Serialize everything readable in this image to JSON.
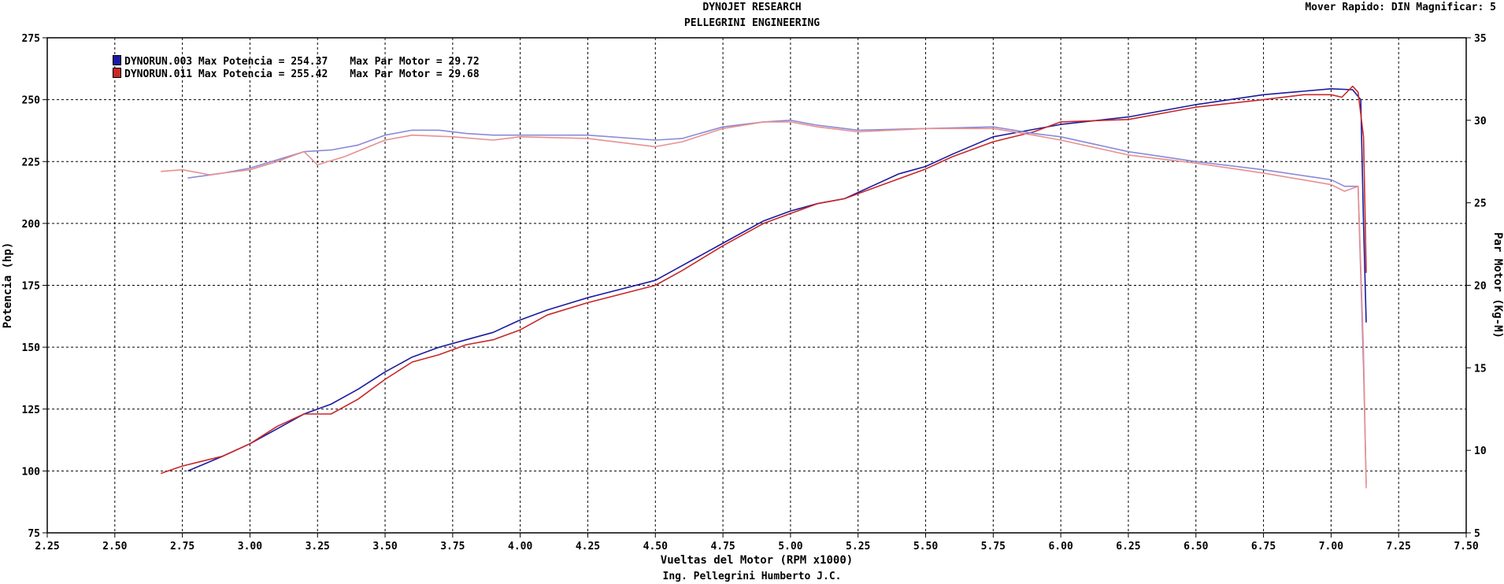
{
  "header": {
    "title": "DYNOJET RESEARCH",
    "subtitle": "PELLEGRINI ENGINEERING",
    "info": "Mover Rapido: DIN  Magnificar: 5"
  },
  "footer": {
    "credit": "Ing. Pellegrini Humberto J.C."
  },
  "legend": [
    {
      "name": "DYNORUN.003",
      "power_text": "Max Potencia = 254.37",
      "torque_text": "Max Par Motor = 29.72"
    },
    {
      "name": "DYNORUN.011",
      "power_text": "Max Potencia = 255.42",
      "torque_text": "Max Par Motor = 29.68"
    }
  ],
  "chart_data": {
    "type": "line",
    "xlabel": "Vueltas del Motor (RPM x1000)",
    "ylabel_left": "Potencia (hp)",
    "ylabel_right": "Par Motor (Kg-M)",
    "xlim": [
      2.25,
      7.5
    ],
    "ylim_left": [
      75,
      275
    ],
    "ylim_right": [
      5,
      35
    ],
    "xticks": [
      "2.25",
      "2.50",
      "2.75",
      "3.00",
      "3.25",
      "3.50",
      "3.75",
      "4.00",
      "4.25",
      "4.50",
      "4.75",
      "5.00",
      "5.25",
      "5.50",
      "5.75",
      "6.00",
      "6.25",
      "6.50",
      "6.75",
      "7.00",
      "7.25",
      "7.50"
    ],
    "yticks_left": [
      "75",
      "100",
      "125",
      "150",
      "175",
      "200",
      "225",
      "250",
      "275"
    ],
    "yticks_right": [
      "5",
      "10",
      "15",
      "20",
      "25",
      "30",
      "35"
    ],
    "grid": true,
    "colors": {
      "run003": "#1a1aa0",
      "run011": "#c82828",
      "run003_torque": "#8a8ad8",
      "run011_torque": "#e89090"
    },
    "series": [
      {
        "name": "DYNORUN.003",
        "kind": "power",
        "axis": "left",
        "x": [
          2.77,
          2.9,
          3.0,
          3.1,
          3.2,
          3.3,
          3.4,
          3.5,
          3.6,
          3.7,
          3.8,
          3.9,
          4.0,
          4.1,
          4.25,
          4.5,
          4.6,
          4.75,
          4.9,
          5.0,
          5.1,
          5.2,
          5.3,
          5.4,
          5.5,
          5.6,
          5.75,
          5.9,
          6.0,
          6.25,
          6.5,
          6.75,
          7.0,
          7.08,
          7.11,
          7.12,
          7.13
        ],
        "y": [
          100,
          106,
          111,
          117,
          123,
          127,
          133,
          140,
          146,
          150,
          153,
          156,
          161,
          165,
          170,
          177,
          183,
          192,
          201,
          205,
          208,
          210,
          215,
          220,
          223,
          228,
          235,
          238,
          240,
          243,
          248,
          252,
          254.4,
          254,
          250,
          200,
          160
        ]
      },
      {
        "name": "DYNORUN.011",
        "kind": "power",
        "axis": "left",
        "x": [
          2.67,
          2.75,
          2.9,
          3.0,
          3.1,
          3.2,
          3.3,
          3.4,
          3.5,
          3.6,
          3.7,
          3.8,
          3.9,
          4.0,
          4.1,
          4.25,
          4.5,
          4.6,
          4.75,
          4.9,
          5.0,
          5.1,
          5.2,
          5.3,
          5.4,
          5.5,
          5.6,
          5.75,
          5.9,
          6.0,
          6.25,
          6.5,
          6.75,
          6.9,
          7.0,
          7.04,
          7.08,
          7.1,
          7.12,
          7.13
        ],
        "y": [
          99,
          102,
          106,
          111,
          118,
          123,
          123,
          129,
          137,
          144,
          147,
          151,
          153,
          157,
          163,
          168,
          175,
          181,
          191,
          200,
          204,
          208,
          210,
          214,
          218,
          222,
          227,
          233,
          237,
          241,
          242,
          247,
          250,
          252,
          252,
          251,
          255.4,
          253,
          235,
          180
        ]
      },
      {
        "name": "DYNORUN.003",
        "kind": "torque",
        "axis": "right",
        "x": [
          2.77,
          2.9,
          3.0,
          3.1,
          3.2,
          3.3,
          3.4,
          3.5,
          3.6,
          3.7,
          3.8,
          3.9,
          4.0,
          4.25,
          4.5,
          4.6,
          4.75,
          4.9,
          5.0,
          5.1,
          5.25,
          5.5,
          5.75,
          5.9,
          6.0,
          6.25,
          6.5,
          6.75,
          7.0,
          7.05,
          7.1,
          7.12,
          7.13
        ],
        "y": [
          26.5,
          26.8,
          27.1,
          27.6,
          28.1,
          28.2,
          28.5,
          29.1,
          29.4,
          29.4,
          29.2,
          29.1,
          29.1,
          29.1,
          28.8,
          28.9,
          29.6,
          29.9,
          30,
          29.7,
          29.4,
          29.5,
          29.6,
          29.2,
          29.0,
          28.1,
          27.5,
          27.0,
          26.4,
          26.0,
          26.0,
          15,
          8
        ]
      },
      {
        "name": "DYNORUN.011",
        "kind": "torque",
        "axis": "right",
        "x": [
          2.67,
          2.75,
          2.85,
          3.0,
          3.1,
          3.2,
          3.25,
          3.35,
          3.5,
          3.6,
          3.75,
          3.9,
          4.0,
          4.25,
          4.5,
          4.6,
          4.75,
          4.9,
          5.0,
          5.1,
          5.25,
          5.5,
          5.75,
          5.9,
          6.0,
          6.25,
          6.5,
          6.75,
          7.0,
          7.05,
          7.1,
          7.12,
          7.13
        ],
        "y": [
          26.9,
          27.0,
          26.7,
          27.0,
          27.5,
          28.1,
          27.3,
          27.8,
          28.8,
          29.1,
          29.0,
          28.8,
          29.0,
          28.9,
          28.4,
          28.7,
          29.5,
          29.9,
          29.9,
          29.6,
          29.3,
          29.5,
          29.5,
          29.1,
          28.8,
          27.9,
          27.4,
          26.8,
          26.1,
          25.7,
          26.0,
          16,
          7.7
        ]
      }
    ]
  }
}
